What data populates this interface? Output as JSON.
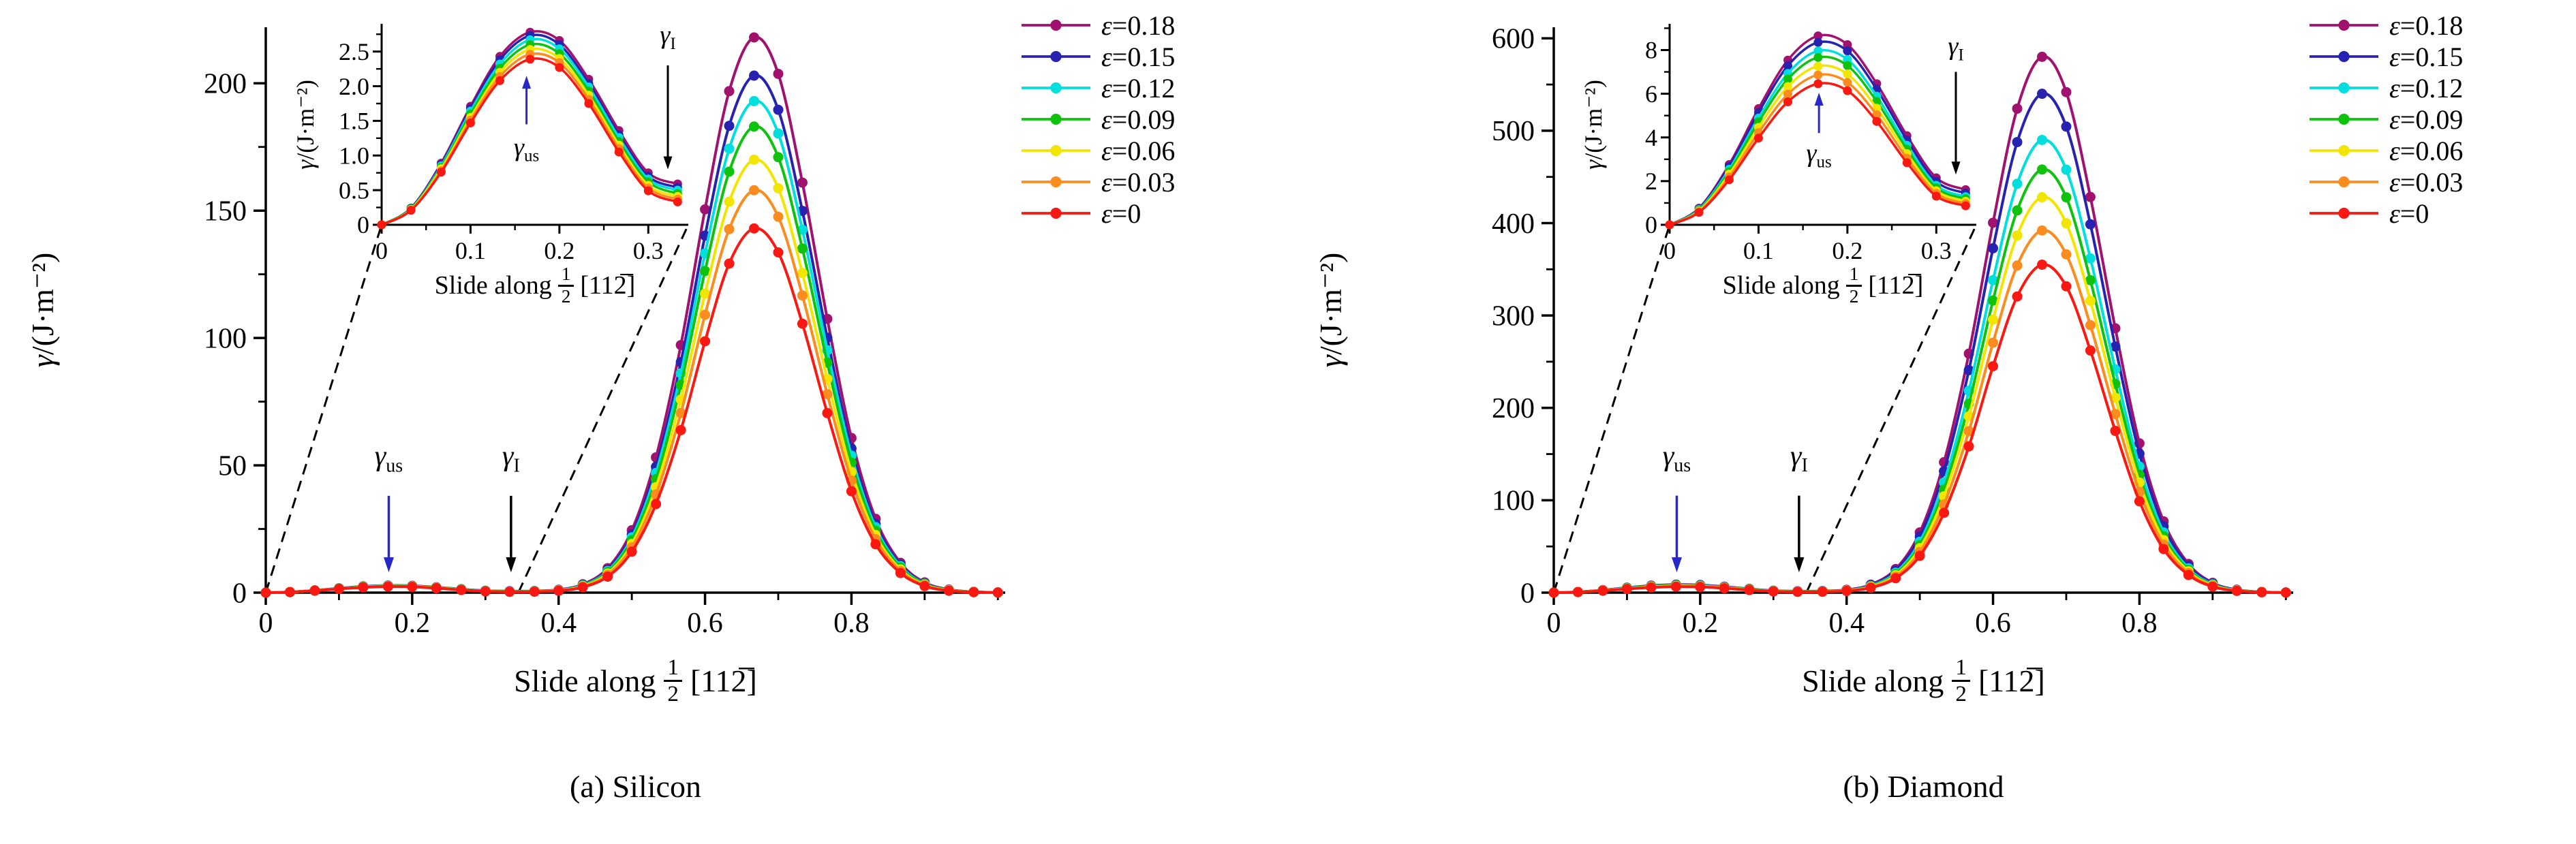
{
  "page": {
    "background": "#ffffff"
  },
  "chart_data": [
    {
      "id": "silicon",
      "type": "line",
      "title_caption": "(a) Silicon",
      "ylabel_gamma": "γ",
      "ylabel_rest": "/(J·m⁻²)",
      "xlabel_prefix": "Slide along",
      "xlabel_frac_num": "1",
      "xlabel_frac_den": "2",
      "xlabel_suffix": "[112̅]",
      "xlim": [
        0,
        1.01
      ],
      "ylim": [
        0,
        222
      ],
      "xticks": [
        0,
        0.2,
        0.4,
        0.6,
        0.8
      ],
      "xtick_labels": [
        "0",
        "0.2",
        "0.4",
        "0.6",
        "0.8"
      ],
      "x_minor_step": 0.1,
      "yticks": [
        0,
        50,
        100,
        150,
        200
      ],
      "ytick_labels": [
        "0",
        "50",
        "100",
        "150",
        "200"
      ],
      "y_minor_step": 25,
      "x": [
        0,
        0.033,
        0.067,
        0.1,
        0.133,
        0.167,
        0.2,
        0.233,
        0.267,
        0.3,
        0.333,
        0.367,
        0.4,
        0.433,
        0.467,
        0.5,
        0.533,
        0.567,
        0.6,
        0.633,
        0.667,
        0.7,
        0.733,
        0.767,
        0.8,
        0.833,
        0.867,
        0.9,
        0.933,
        0.967,
        1
      ],
      "series": [
        {
          "label": "ε=0.18",
          "color": "#a1116e",
          "values": [
            0,
            0.24,
            0.89,
            1.71,
            2.43,
            2.78,
            2.66,
            2.1,
            1.36,
            0.75,
            0.59,
            0.65,
            1.13,
            3.26,
            9.6,
            24.5,
            53.1,
            97.2,
            150.5,
            196.9,
            218,
            203.7,
            161,
            107.5,
            60.7,
            29,
            11.7,
            4,
            1.2,
            0.3,
            0.1
          ]
        },
        {
          "label": "ε=0.15",
          "color": "#2722b0",
          "values": [
            0,
            0.24,
            0.87,
            1.68,
            2.38,
            2.73,
            2.6,
            2.04,
            1.3,
            0.7,
            0.54,
            0.6,
            1.05,
            3.03,
            8.9,
            22.8,
            49.4,
            90.5,
            140.2,
            183.3,
            203,
            189.6,
            149.9,
            100.1,
            56.6,
            27,
            10.9,
            3.7,
            1.1,
            0.3,
            0.1
          ]
        },
        {
          "label": "ε=0.12",
          "color": "#00dede",
          "values": [
            0,
            0.23,
            0.85,
            1.64,
            2.32,
            2.67,
            2.54,
            1.99,
            1.26,
            0.66,
            0.5,
            0.56,
            0.99,
            2.88,
            8.5,
            21.7,
            47,
            86.1,
            133.2,
            174.3,
            193,
            180.3,
            142.5,
            95.2,
            53.8,
            25.7,
            10.4,
            3.5,
            1,
            0.25,
            0.05
          ]
        },
        {
          "label": "ε=0.09",
          "color": "#0ec20e",
          "values": [
            0,
            0.23,
            0.83,
            1.6,
            2.26,
            2.6,
            2.47,
            1.93,
            1.2,
            0.62,
            0.45,
            0.51,
            0.93,
            2.73,
            8.1,
            20.6,
            44.5,
            81.6,
            126.3,
            165.3,
            183,
            171,
            135.1,
            90.3,
            51,
            24.3,
            9.8,
            3.4,
            1,
            0.25,
            0.05
          ]
        },
        {
          "label": "ε=0.06",
          "color": "#f2e500",
          "values": [
            0,
            0.22,
            0.81,
            1.55,
            2.2,
            2.53,
            2.4,
            1.87,
            1.15,
            0.57,
            0.41,
            0.47,
            0.86,
            2.53,
            7.5,
            19.1,
            41.4,
            75.8,
            117.4,
            153.5,
            170,
            158.8,
            125.5,
            83.9,
            47.4,
            22.6,
            9.1,
            3.1,
            0.9,
            0.2,
            0.05
          ]
        },
        {
          "label": "ε=0.03",
          "color": "#fc8c20",
          "values": [
            0,
            0.21,
            0.78,
            1.51,
            2.14,
            2.46,
            2.34,
            1.81,
            1.1,
            0.53,
            0.37,
            0.43,
            0.79,
            2.35,
            7,
            17.8,
            38.5,
            70.5,
            109.1,
            142.7,
            158,
            147.6,
            116.7,
            77.9,
            44,
            21,
            8.5,
            2.9,
            0.8,
            0.2,
            0.04
          ]
        },
        {
          "label": "ε=0",
          "color": "#fa1812",
          "values": [
            0,
            0.21,
            0.76,
            1.47,
            2.08,
            2.39,
            2.27,
            1.75,
            1.05,
            0.49,
            0.33,
            0.38,
            0.72,
            2.13,
            6.3,
            16.1,
            34.8,
            63.8,
            98.7,
            129.2,
            143,
            133.6,
            105.6,
            70.5,
            39.8,
            19,
            7.7,
            2.6,
            0.75,
            0.18,
            0.04
          ]
        }
      ],
      "inset": {
        "xlim": [
          0,
          0.345
        ],
        "ylim": [
          0,
          2.9
        ],
        "xticks": [
          0,
          0.1,
          0.2,
          0.3
        ],
        "xtick_labels": [
          "0",
          "0.1",
          "0.2",
          "0.3"
        ],
        "x_minor_step": 0.05,
        "yticks": [
          0,
          0.5,
          1,
          1.5,
          2,
          2.5
        ],
        "ytick_labels": [
          "0",
          "0.5",
          "1.0",
          "1.5",
          "2.0",
          "2.5"
        ],
        "y_minor_step": 0.25,
        "points": 11
      },
      "annotations": {
        "main": [
          {
            "base": "γ",
            "sub": "us",
            "x": 0.168,
            "label_y": 50,
            "arrow_from": 38,
            "arrow_to": 8,
            "color": "#2828c8"
          },
          {
            "base": "γ",
            "sub": "I",
            "x": 0.335,
            "label_y": 50,
            "arrow_from": 38,
            "arrow_to": 8,
            "color": "#000000"
          }
        ],
        "inset": [
          {
            "base": "γ",
            "sub": "us",
            "x": 0.163,
            "label_y": 1.0,
            "arrow_from": 1.45,
            "arrow_to": 2.15,
            "color": "#2828c8"
          },
          {
            "base": "γ",
            "sub": "I",
            "x": 0.322,
            "label_y": 2.62,
            "arrow_from": 2.3,
            "arrow_to": 0.8,
            "color": "#000000"
          }
        ]
      }
    },
    {
      "id": "diamond",
      "type": "line",
      "title_caption": "(b) Diamond",
      "ylabel_gamma": "γ",
      "ylabel_rest": "/(J·m⁻²)",
      "xlabel_prefix": "Slide along",
      "xlabel_frac_num": "1",
      "xlabel_frac_den": "2",
      "xlabel_suffix": "[112̅]",
      "xlim": [
        0,
        1.01
      ],
      "ylim": [
        0,
        612
      ],
      "xticks": [
        0,
        0.2,
        0.4,
        0.6,
        0.8
      ],
      "xtick_labels": [
        "0",
        "0.2",
        "0.4",
        "0.6",
        "0.8"
      ],
      "x_minor_step": 0.1,
      "yticks": [
        0,
        100,
        200,
        300,
        400,
        500,
        600
      ],
      "ytick_labels": [
        "0",
        "100",
        "200",
        "300",
        "400",
        "500",
        "600"
      ],
      "y_minor_step": 50,
      "x": [
        0,
        0.033,
        0.067,
        0.1,
        0.133,
        0.167,
        0.2,
        0.233,
        0.267,
        0.3,
        0.333,
        0.367,
        0.4,
        0.433,
        0.467,
        0.5,
        0.533,
        0.567,
        0.6,
        0.633,
        0.667,
        0.7,
        0.733,
        0.767,
        0.8,
        0.833,
        0.867,
        0.9,
        0.933,
        0.967,
        1
      ],
      "series": [
        {
          "label": "ε=0.18",
          "color": "#a1116e",
          "values": [
            0,
            0.76,
            2.76,
            5.32,
            7.54,
            8.65,
            8.25,
            6.46,
            4.08,
            2.15,
            1.61,
            1.77,
            3.04,
            8.68,
            25.5,
            65.2,
            141.2,
            258.7,
            400.4,
            523.9,
            580,
            541.8,
            428.3,
            286.1,
            161.6,
            77.1,
            31.1,
            10.6,
            3.1,
            0.75,
            0.15
          ]
        },
        {
          "label": "ε=0.15",
          "color": "#2722b0",
          "values": [
            0,
            0.73,
            2.67,
            5.14,
            7.28,
            8.35,
            7.96,
            6.21,
            3.88,
            1.98,
            1.45,
            1.61,
            2.8,
            8.07,
            23.8,
            60.7,
            131.4,
            240.8,
            372.8,
            487.7,
            540,
            504.5,
            398.7,
            266.4,
            150.4,
            71.8,
            29,
            9.9,
            2.9,
            0.7,
            0.14
          ]
        },
        {
          "label": "ε=0.12",
          "color": "#00dede",
          "values": [
            0,
            0.7,
            2.54,
            4.89,
            6.93,
            7.96,
            7.57,
            5.89,
            3.64,
            1.81,
            1.29,
            1.44,
            2.53,
            7.32,
            21.6,
            55.1,
            119.3,
            218.5,
            338.3,
            442.6,
            490,
            457.8,
            361.8,
            241.7,
            136.5,
            65.2,
            26.3,
            9,
            2.6,
            0.6,
            0.13
          ]
        },
        {
          "label": "ε=0.09",
          "color": "#0ec20e",
          "values": [
            0,
            0.67,
            2.44,
            4.71,
            6.67,
            7.66,
            7.29,
            5.65,
            3.46,
            1.69,
            1.19,
            1.33,
            2.36,
            6.84,
            20.2,
            51.5,
            111.5,
            204.3,
            316.2,
            413.7,
            458,
            427.9,
            338.2,
            225.9,
            127.6,
            60.9,
            24.6,
            8.4,
            2.4,
            0.6,
            0.12
          ]
        },
        {
          "label": "ε=0.06",
          "color": "#f2e500",
          "values": [
            0,
            0.63,
            2.32,
            4.46,
            6.33,
            7.26,
            6.9,
            5.34,
            3.26,
            1.56,
            1.08,
            1.22,
            2.19,
            6.38,
            18.8,
            48.1,
            104.2,
            190.9,
            295.5,
            386.6,
            428,
            399.8,
            316,
            211.1,
            119.2,
            56.9,
            23,
            7.8,
            2.3,
            0.55,
            0.11
          ]
        },
        {
          "label": "ε=0.03",
          "color": "#fc8c20",
          "values": [
            0,
            0.6,
            2.19,
            4.22,
            5.98,
            6.86,
            6.52,
            5.04,
            3.05,
            1.44,
            0.97,
            1.1,
            2,
            5.84,
            17.3,
            44.1,
            95.4,
            174.8,
            270.6,
            354.1,
            392,
            366.2,
            289.5,
            193.4,
            109.2,
            52.1,
            21.1,
            7.2,
            2.1,
            0.5,
            0.1
          ]
        },
        {
          "label": "ε=0",
          "color": "#fa1812",
          "values": [
            0,
            0.57,
            2.06,
            3.97,
            5.63,
            6.46,
            6.14,
            4.73,
            2.84,
            1.31,
            0.87,
            0.99,
            1.8,
            5.29,
            15.6,
            39.9,
            86.4,
            158.3,
            245.1,
            320.6,
            355,
            331.6,
            262.1,
            175.1,
            98.9,
            47.2,
            19.1,
            6.5,
            1.9,
            0.45,
            0.09
          ]
        }
      ],
      "inset": {
        "xlim": [
          0,
          0.345
        ],
        "ylim": [
          0,
          9.2
        ],
        "xticks": [
          0,
          0.1,
          0.2,
          0.3
        ],
        "xtick_labels": [
          "0",
          "0.1",
          "0.2",
          "0.3"
        ],
        "x_minor_step": 0.05,
        "yticks": [
          0,
          2,
          4,
          6,
          8
        ],
        "ytick_labels": [
          "0",
          "2",
          "4",
          "6",
          "8"
        ],
        "y_minor_step": 1,
        "points": 11
      },
      "annotations": {
        "main": [
          {
            "base": "γ",
            "sub": "us",
            "x": 0.168,
            "label_y": 138,
            "arrow_from": 105,
            "arrow_to": 22,
            "color": "#2828c8"
          },
          {
            "base": "γ",
            "sub": "I",
            "x": 0.335,
            "label_y": 138,
            "arrow_from": 105,
            "arrow_to": 22,
            "color": "#000000"
          }
        ],
        "inset": [
          {
            "base": "γ",
            "sub": "us",
            "x": 0.168,
            "label_y": 2.9,
            "arrow_from": 4.2,
            "arrow_to": 6.05,
            "color": "#2828c8"
          },
          {
            "base": "γ",
            "sub": "I",
            "x": 0.322,
            "label_y": 7.8,
            "arrow_from": 7.0,
            "arrow_to": 2.3,
            "color": "#000000"
          }
        ]
      }
    }
  ]
}
